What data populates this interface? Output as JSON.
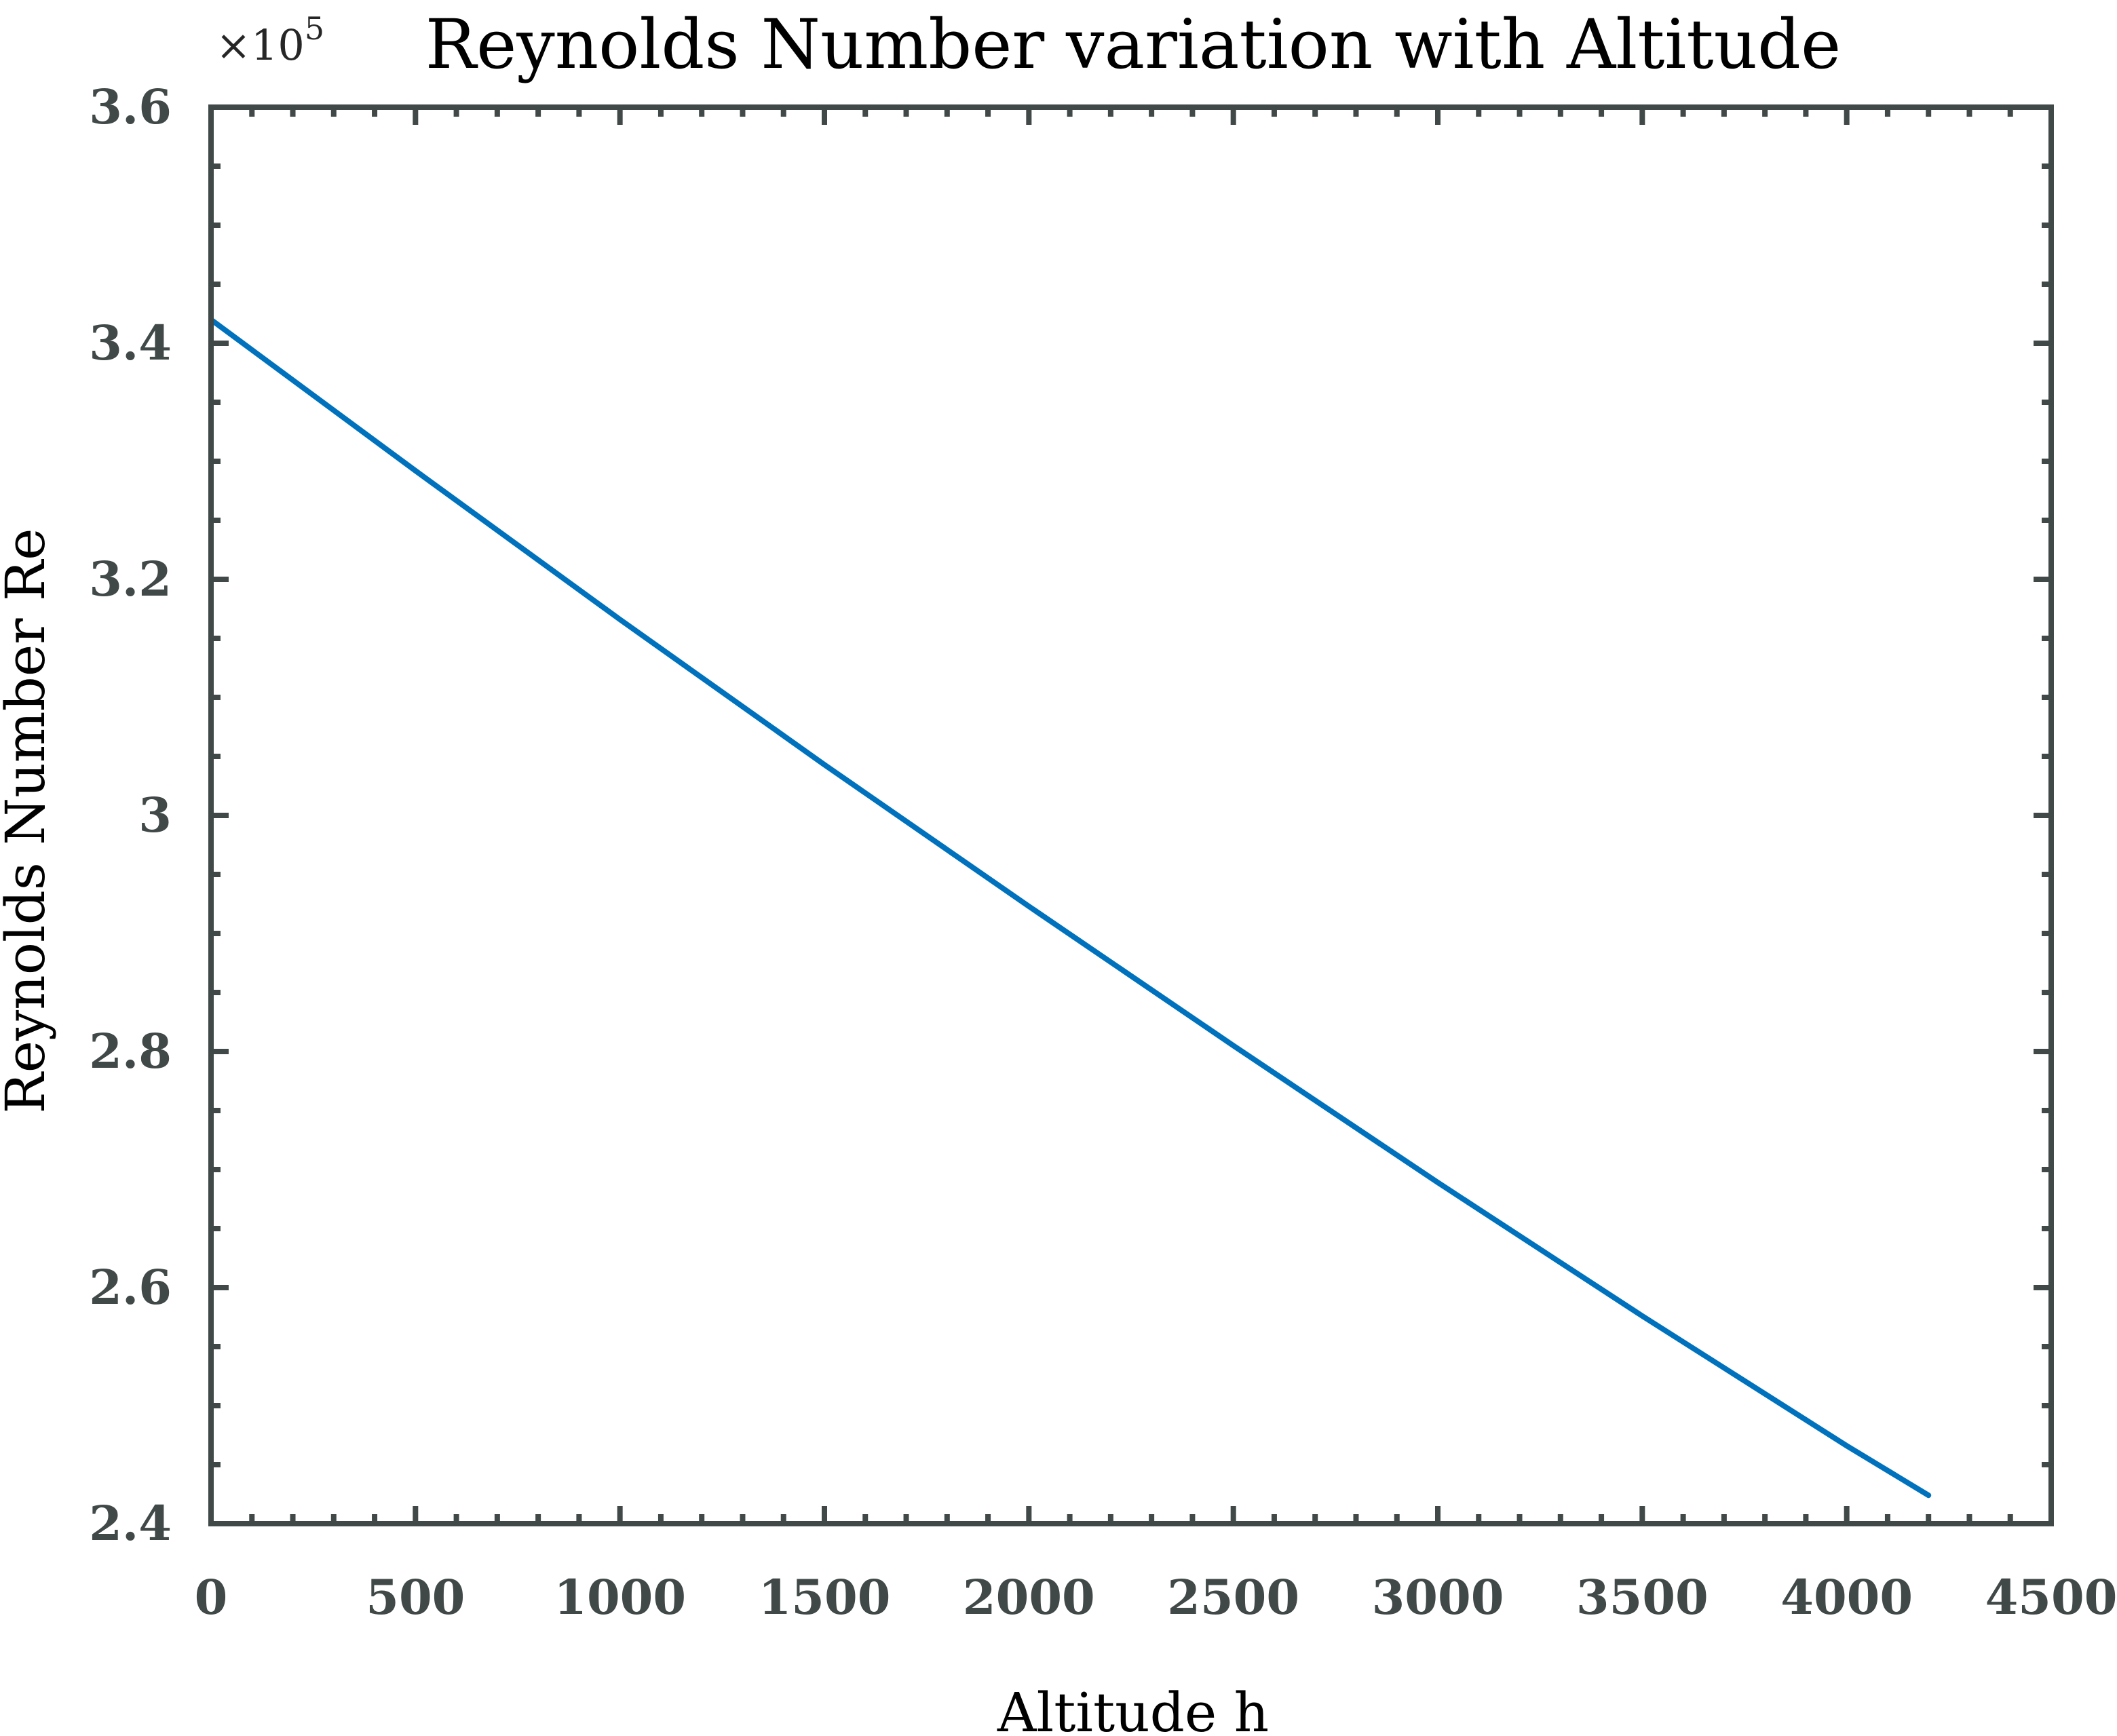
{
  "chart_data": {
    "type": "line",
    "title": "Reynolds Number variation with Altitude",
    "xlabel": "Altitude h",
    "ylabel": "Reynolds Number Re",
    "y_multiplier": {
      "base": "×10",
      "exponent": "5"
    },
    "xlim": [
      0,
      4500
    ],
    "ylim": [
      2.4,
      3.6
    ],
    "x_ticks": [
      0,
      500,
      1000,
      1500,
      2000,
      2500,
      3000,
      3500,
      4000,
      4500
    ],
    "x_tick_labels": [
      "0",
      "500",
      "1000",
      "1500",
      "2000",
      "2500",
      "3000",
      "3500",
      "4000",
      "4500"
    ],
    "y_ticks": [
      2.4,
      2.6,
      2.8,
      3.0,
      3.2,
      3.4,
      3.6
    ],
    "y_tick_labels": [
      "2.4",
      "2.6",
      "2.8",
      "3",
      "3.2",
      "3.4",
      "3.6"
    ],
    "x_minor_step": 100,
    "y_minor_step": 0.05,
    "grid": false,
    "colors": {
      "series": "#0072BD",
      "axes": "#404848"
    },
    "series": [
      {
        "x": [
          0,
          500,
          1000,
          1500,
          2000,
          2500,
          3000,
          3500,
          4000,
          4200
        ],
        "values": [
          3.42,
          3.292,
          3.166,
          3.043,
          2.923,
          2.805,
          2.689,
          2.576,
          2.466,
          2.424
        ]
      }
    ]
  }
}
